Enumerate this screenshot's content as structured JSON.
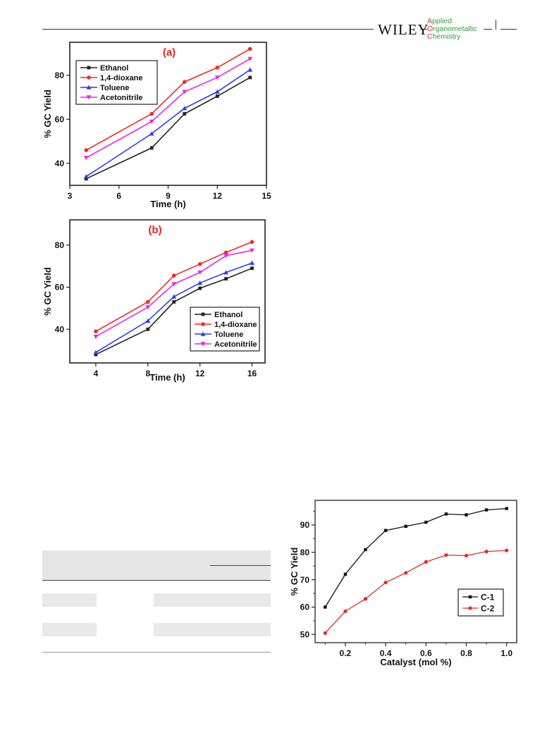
{
  "header": {
    "publisher": "WILEY",
    "journal": [
      {
        "cap": "A",
        "rest": "pplied"
      },
      {
        "cap": "O",
        "rest": "rganometallic"
      },
      {
        "cap": "C",
        "rest": "hemistry"
      }
    ]
  },
  "chart_data": [
    {
      "type": "line",
      "title": "(a)",
      "xlabel": "Time (h)",
      "ylabel": "% GC Yield",
      "xlim": [
        3,
        15
      ],
      "ylim": [
        30,
        95
      ],
      "xticks": [
        3,
        6,
        9,
        12,
        15
      ],
      "yticks": [
        40,
        60,
        80
      ],
      "legend_position": "top-left",
      "x": [
        4,
        8,
        10,
        12,
        14
      ],
      "series": [
        {
          "name": "Ethanol",
          "color": "#222222",
          "marker": "square",
          "values": [
            33,
            47,
            62.5,
            70.5,
            79
          ]
        },
        {
          "name": "1,4-dioxane",
          "color": "#ee2a2a",
          "marker": "circle",
          "values": [
            46,
            62.5,
            77,
            83.5,
            92
          ]
        },
        {
          "name": "Toluene",
          "color": "#2a3cf0",
          "marker": "triangle-up",
          "values": [
            34,
            53.5,
            65,
            72.5,
            82.5
          ]
        },
        {
          "name": "Acetonitrile",
          "color": "#ee22ee",
          "marker": "triangle-down",
          "values": [
            42.5,
            59,
            72.5,
            79,
            87.5
          ]
        }
      ]
    },
    {
      "type": "line",
      "title": "(b)",
      "xlabel": "Time (h)",
      "ylabel": "% GC Yield",
      "xlim": [
        2,
        17
      ],
      "ylim": [
        24,
        92
      ],
      "xticks": [
        4,
        8,
        12,
        16
      ],
      "yticks": [
        40,
        60,
        80
      ],
      "legend_position": "bottom-right",
      "x": [
        4,
        8,
        10,
        12,
        14,
        16
      ],
      "series": [
        {
          "name": "Ethanol",
          "color": "#222222",
          "marker": "square",
          "values": [
            28,
            40,
            53,
            59.5,
            64,
            69
          ]
        },
        {
          "name": "1,4-dioxane",
          "color": "#ee2a2a",
          "marker": "circle",
          "values": [
            39,
            53,
            65.5,
            71,
            76.5,
            81.5
          ]
        },
        {
          "name": "Toluene",
          "color": "#2a3cf0",
          "marker": "triangle-up",
          "values": [
            29,
            44,
            55.5,
            62,
            67,
            71.5
          ]
        },
        {
          "name": "Acetonitrile",
          "color": "#ee22ee",
          "marker": "triangle-down",
          "values": [
            36.5,
            50.5,
            61.5,
            67,
            75,
            77.5
          ]
        }
      ]
    },
    {
      "type": "line",
      "title": "",
      "xlabel": "Catalyst (mol %)",
      "ylabel": "% GC Yield",
      "xlim": [
        0.05,
        1.05
      ],
      "ylim": [
        47,
        99
      ],
      "xticks": [
        0.2,
        0.4,
        0.6,
        0.8,
        1.0
      ],
      "yticks": [
        50,
        60,
        70,
        80,
        90
      ],
      "legend_position": "bottom-right",
      "x": [
        0.1,
        0.2,
        0.3,
        0.4,
        0.5,
        0.6,
        0.7,
        0.8,
        0.9,
        1.0
      ],
      "series": [
        {
          "name": "C-1",
          "color": "#111111",
          "marker": "square",
          "values": [
            60,
            72,
            81,
            88,
            89.5,
            91,
            94,
            93.7,
            95.5,
            96
          ]
        },
        {
          "name": "C-2",
          "color": "#e8281e",
          "marker": "circle",
          "values": [
            50.5,
            58.5,
            63,
            69,
            72.5,
            76.5,
            79,
            78.8,
            80.3,
            80.7
          ]
        }
      ]
    }
  ]
}
